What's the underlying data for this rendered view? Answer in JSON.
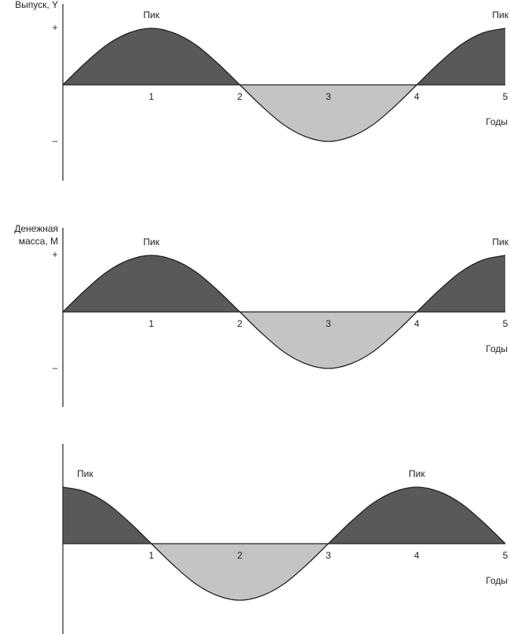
{
  "chart_data": [
    {
      "type": "area",
      "ylabel": [
        "Выпуск, Y"
      ],
      "xlabel": "Годы",
      "x": [
        0,
        0.25,
        0.5,
        0.75,
        1,
        1.25,
        1.5,
        1.75,
        2,
        2.25,
        2.5,
        2.75,
        3,
        3.25,
        3.5,
        3.75,
        4,
        4.25,
        4.5,
        4.75,
        5
      ],
      "values": [
        0,
        0.38,
        0.71,
        0.92,
        1,
        0.92,
        0.71,
        0.38,
        0,
        -0.38,
        -0.71,
        -0.92,
        -1,
        -0.92,
        -0.71,
        -0.38,
        0,
        0.38,
        0.71,
        0.92,
        1
      ],
      "xlim": [
        0,
        5
      ],
      "xticks": [
        1,
        2,
        3,
        4,
        5
      ],
      "ylim": [
        -1.6,
        1.4
      ],
      "yticks": [
        {
          "value": 1,
          "label": "+"
        },
        {
          "value": -1,
          "label": "–"
        }
      ],
      "positive_color": "#595959",
      "negative_color": "#c4c4c4",
      "annotations": [
        {
          "text": "Пик",
          "x": 1
        },
        {
          "text": "Пик",
          "x": 5
        }
      ]
    },
    {
      "type": "area",
      "ylabel": [
        "Денежная",
        "масса, M"
      ],
      "xlabel": "Годы",
      "x": [
        0,
        0.25,
        0.5,
        0.75,
        1,
        1.25,
        1.5,
        1.75,
        2,
        2.25,
        2.5,
        2.75,
        3,
        3.25,
        3.5,
        3.75,
        4,
        4.25,
        4.5,
        4.75,
        5
      ],
      "values": [
        0,
        0.38,
        0.71,
        0.92,
        1,
        0.92,
        0.71,
        0.38,
        0,
        -0.38,
        -0.71,
        -0.92,
        -1,
        -0.92,
        -0.71,
        -0.38,
        0,
        0.38,
        0.71,
        0.92,
        1
      ],
      "xlim": [
        0,
        5
      ],
      "xticks": [
        1,
        2,
        3,
        4,
        5
      ],
      "ylim": [
        -1.6,
        1.4
      ],
      "yticks": [
        {
          "value": 1,
          "label": "+"
        },
        {
          "value": -1,
          "label": "–"
        }
      ],
      "positive_color": "#595959",
      "negative_color": "#c4c4c4",
      "annotations": [
        {
          "text": "Пик",
          "x": 1
        },
        {
          "text": "Пик",
          "x": 5
        }
      ]
    },
    {
      "type": "area",
      "xlabel": "Годы",
      "x": [
        0,
        0.25,
        0.5,
        0.75,
        1,
        1.25,
        1.5,
        1.75,
        2,
        2.25,
        2.5,
        2.75,
        3,
        3.25,
        3.5,
        3.75,
        4,
        4.25,
        4.5,
        4.75,
        5
      ],
      "values": [
        1,
        0.92,
        0.71,
        0.38,
        0,
        -0.38,
        -0.71,
        -0.92,
        -1,
        -0.92,
        -0.71,
        -0.38,
        0,
        0.38,
        0.71,
        0.92,
        1,
        0.92,
        0.71,
        0.38,
        0
      ],
      "xlim": [
        0,
        5
      ],
      "xticks": [
        1,
        2,
        3,
        4,
        5
      ],
      "ylim": [
        -1.6,
        1.4
      ],
      "positive_color": "#595959",
      "negative_color": "#c4c4c4",
      "annotations": [
        {
          "text": "Пик",
          "x": 0
        },
        {
          "text": "Пик",
          "x": 4
        }
      ]
    }
  ]
}
